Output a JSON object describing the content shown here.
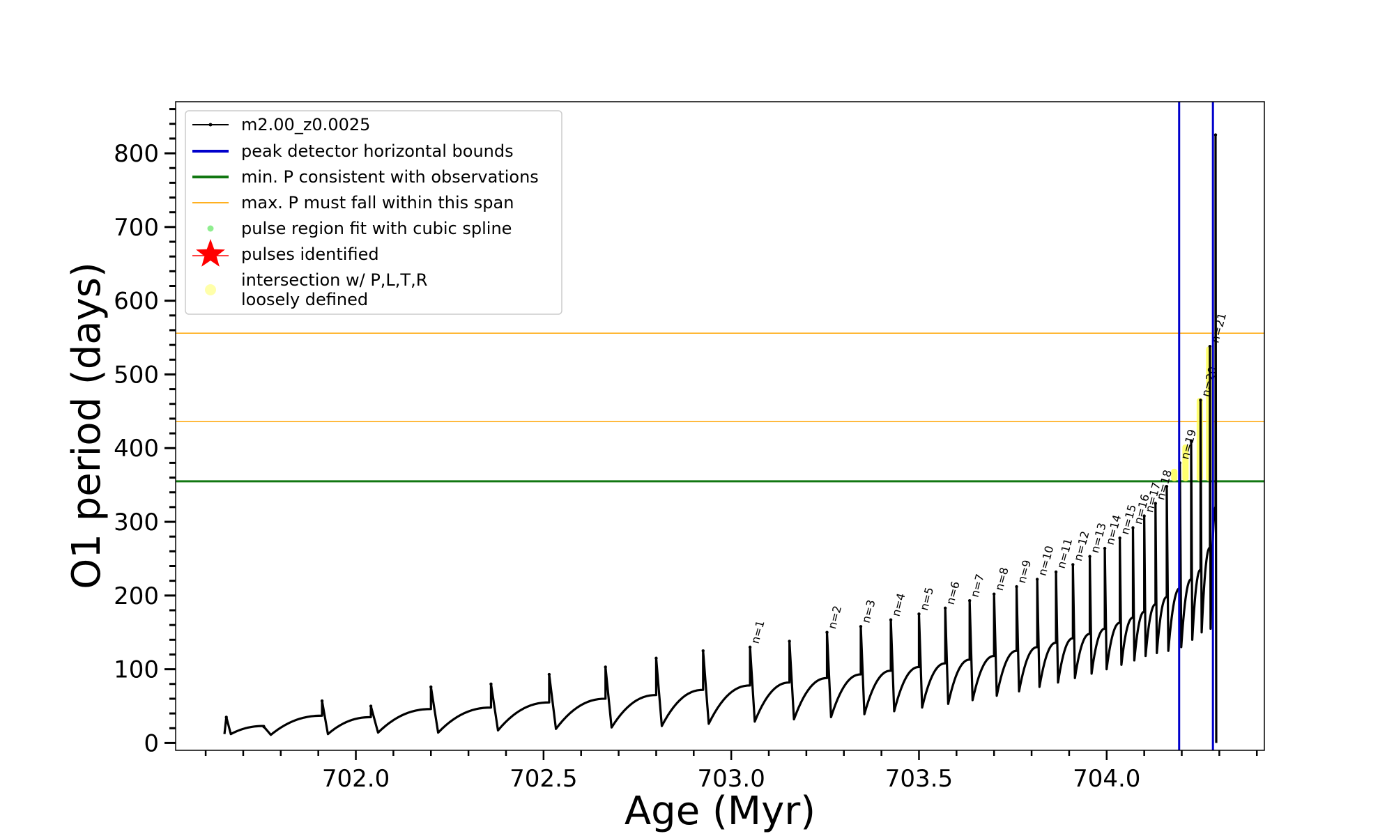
{
  "chart_data": {
    "type": "line",
    "xlabel": "Age (Myr)",
    "ylabel": "O1 period (days)",
    "xlim": [
      701.52,
      704.42
    ],
    "ylim": [
      -10,
      870
    ],
    "xticks": [
      702.0,
      702.5,
      703.0,
      703.5,
      704.0
    ],
    "xtick_labels": [
      "702.0",
      "702.5",
      "703.0",
      "703.5",
      "704.0"
    ],
    "yticks": [
      0,
      100,
      200,
      300,
      400,
      500,
      600,
      700,
      800
    ],
    "ytick_labels": [
      "0",
      "100",
      "200",
      "300",
      "400",
      "500",
      "600",
      "700",
      "800"
    ],
    "grid": false,
    "legend_position": "top-left",
    "legend": [
      {
        "label": "m2.00_z0.0025",
        "kind": "line-marker",
        "color": "#000000"
      },
      {
        "label": "peak detector horizontal bounds",
        "kind": "line",
        "color": "#0000cc"
      },
      {
        "label": "min. P consistent with observations",
        "kind": "line",
        "color": "#117711"
      },
      {
        "label": "max. P must fall within this span",
        "kind": "thin-line",
        "color": "#ffa500"
      },
      {
        "label": "pulse region fit with cubic spline",
        "kind": "dot",
        "color": "#90ee90"
      },
      {
        "label": "pulses identified",
        "kind": "star",
        "color": "#ff0000"
      },
      {
        "label": "intersection w/ P,L,T,R",
        "label2": "loosely defined",
        "kind": "dot-big",
        "color": "#ffffaa"
      }
    ],
    "hlines": [
      {
        "y": 355,
        "color": "#117711",
        "width": 3
      },
      {
        "y": 436,
        "color": "#ffa500",
        "width": 1.5
      },
      {
        "y": 556,
        "color": "#ffa500",
        "width": 1.5
      }
    ],
    "vlines": [
      {
        "x": 704.193,
        "color": "#0000cc",
        "width": 3
      },
      {
        "x": 704.283,
        "color": "#0000cc",
        "width": 3
      }
    ],
    "start": {
      "x": 701.65,
      "base": 12
    },
    "pulses": [
      {
        "x": 701.655,
        "peak": 35,
        "min": 12,
        "end": 23,
        "label": ""
      },
      {
        "x": 701.755,
        "peak": 22,
        "min": 11,
        "end": 37,
        "label": ""
      },
      {
        "x": 701.91,
        "peak": 57,
        "min": 12,
        "end": 35,
        "label": ""
      },
      {
        "x": 702.04,
        "peak": 50,
        "min": 14,
        "end": 46,
        "label": ""
      },
      {
        "x": 702.2,
        "peak": 76,
        "min": 14,
        "end": 48,
        "label": ""
      },
      {
        "x": 702.36,
        "peak": 80,
        "min": 17,
        "end": 55,
        "label": ""
      },
      {
        "x": 702.515,
        "peak": 93,
        "min": 19,
        "end": 60,
        "label": ""
      },
      {
        "x": 702.665,
        "peak": 103,
        "min": 21,
        "end": 65,
        "label": ""
      },
      {
        "x": 702.8,
        "peak": 115,
        "min": 23,
        "end": 72,
        "label": ""
      },
      {
        "x": 702.925,
        "peak": 125,
        "min": 26,
        "end": 78,
        "label": ""
      },
      {
        "x": 703.05,
        "peak": 130,
        "min": 29,
        "end": 82,
        "label": "n=1"
      },
      {
        "x": 703.155,
        "peak": 138,
        "min": 32,
        "end": 88,
        "label": ""
      },
      {
        "x": 703.255,
        "peak": 150,
        "min": 35,
        "end": 93,
        "label": "n=2"
      },
      {
        "x": 703.345,
        "peak": 158,
        "min": 39,
        "end": 98,
        "label": "n=3"
      },
      {
        "x": 703.425,
        "peak": 167,
        "min": 43,
        "end": 103,
        "label": "n=4"
      },
      {
        "x": 703.5,
        "peak": 175,
        "min": 48,
        "end": 108,
        "label": "n=5"
      },
      {
        "x": 703.57,
        "peak": 183,
        "min": 53,
        "end": 113,
        "label": "n=6"
      },
      {
        "x": 703.635,
        "peak": 193,
        "min": 58,
        "end": 118,
        "label": "n=7"
      },
      {
        "x": 703.7,
        "peak": 202,
        "min": 64,
        "end": 125,
        "label": "n=8"
      },
      {
        "x": 703.76,
        "peak": 212,
        "min": 70,
        "end": 130,
        "label": "n=9"
      },
      {
        "x": 703.815,
        "peak": 222,
        "min": 76,
        "end": 136,
        "label": "n=10"
      },
      {
        "x": 703.865,
        "peak": 232,
        "min": 82,
        "end": 142,
        "label": "n=11"
      },
      {
        "x": 703.91,
        "peak": 242,
        "min": 88,
        "end": 148,
        "label": "n=12"
      },
      {
        "x": 703.955,
        "peak": 253,
        "min": 94,
        "end": 155,
        "label": "n=13"
      },
      {
        "x": 703.995,
        "peak": 264,
        "min": 100,
        "end": 163,
        "label": "n=14"
      },
      {
        "x": 704.035,
        "peak": 278,
        "min": 106,
        "end": 170,
        "label": "n=15"
      },
      {
        "x": 704.07,
        "peak": 292,
        "min": 112,
        "end": 178,
        "label": "n=16"
      },
      {
        "x": 704.1,
        "peak": 308,
        "min": 118,
        "end": 188,
        "label": "n=17"
      },
      {
        "x": 704.13,
        "peak": 325,
        "min": 122,
        "end": 198,
        "label": "n=18"
      },
      {
        "x": 704.16,
        "peak": 348,
        "min": 125,
        "end": 210,
        "label": ""
      },
      {
        "x": 704.195,
        "peak": 380,
        "min": 130,
        "end": 222,
        "label": "n=19"
      },
      {
        "x": 704.225,
        "peak": 410,
        "min": 140,
        "end": 235,
        "label": ""
      },
      {
        "x": 704.25,
        "peak": 465,
        "min": 150,
        "end": 265,
        "label": "n=20"
      },
      {
        "x": 704.275,
        "peak": 538,
        "min": 155,
        "end": 320,
        "label": "n=21"
      },
      {
        "x": 704.29,
        "peak": 825,
        "min": 0,
        "end": 0,
        "label": ""
      }
    ],
    "highlight_regions": [
      {
        "x": 704.18,
        "ymin": 355,
        "ymax": 372
      },
      {
        "x": 704.21,
        "ymin": 355,
        "ymax": 405
      },
      {
        "x": 704.248,
        "ymin": 355,
        "ymax": 468
      },
      {
        "x": 704.273,
        "ymin": 355,
        "ymax": 538
      }
    ]
  }
}
